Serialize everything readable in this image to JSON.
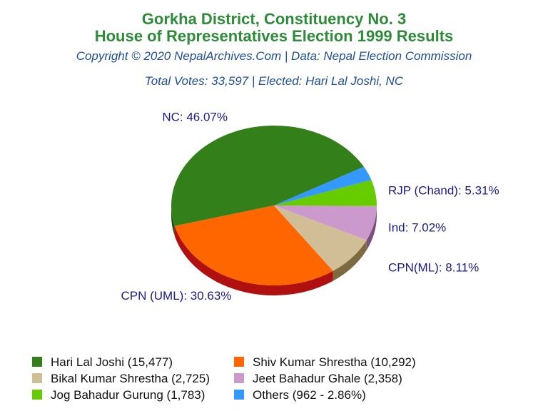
{
  "header": {
    "title_line1": "Gorkha District, Constituency No. 3",
    "title_line2": "House of Representatives Election 1999 Results",
    "copyright": "Copyright © 2020 NepalArchives.Com | Data: Nepal Election Commission",
    "summary": "Total Votes: 33,597 | Elected: Hari Lal Joshi, NC"
  },
  "chart_data": {
    "type": "pie",
    "title": "Gorkha District, Constituency No. 3 House of Representatives Election 1999 Results",
    "total_votes": 33597,
    "slices": [
      {
        "label": "NC: 46.07%",
        "party": "NC",
        "candidate": "Hari Lal Joshi",
        "votes": 15477,
        "percent": 46.07,
        "color": "#33801a",
        "side_color": "#1f5510"
      },
      {
        "label": "CPN (UML): 30.63%",
        "party": "CPN (UML)",
        "candidate": "Shiv Kumar Shrestha",
        "votes": 10292,
        "percent": 30.63,
        "color": "#ff6600",
        "side_color": "#b01010"
      },
      {
        "label": "CPN(ML): 8.11%",
        "party": "CPN(ML)",
        "candidate": "Bikal Kumar Shrestha",
        "votes": 2725,
        "percent": 8.11,
        "color": "#d2be96",
        "side_color": "#7d6a40"
      },
      {
        "label": "Ind: 7.02%",
        "party": "Ind",
        "candidate": "Jeet Bahadur Ghale",
        "votes": 2358,
        "percent": 7.02,
        "color": "#cc99cc",
        "side_color": "#7a4f7a"
      },
      {
        "label": "RJP (Chand): 5.31%",
        "party": "RJP (Chand)",
        "candidate": "Jog Bahadur Gurung",
        "votes": 1783,
        "percent": 5.31,
        "color": "#66cc00",
        "side_color": "#3d7a00"
      },
      {
        "label": "",
        "party": "Others",
        "candidate": "Others",
        "votes": 962,
        "percent": 2.86,
        "color": "#3399ff",
        "side_color": "#1f5c99"
      }
    ]
  },
  "legend": {
    "items": [
      {
        "text": "Hari Lal Joshi (15,477)",
        "color": "#33801a"
      },
      {
        "text": "Shiv Kumar Shrestha (10,292)",
        "color": "#ff6600"
      },
      {
        "text": "Bikal Kumar Shrestha (2,725)",
        "color": "#d2be96"
      },
      {
        "text": "Jeet Bahadur Ghale (2,358)",
        "color": "#cc99cc"
      },
      {
        "text": "Jog Bahadur Gurung (1,783)",
        "color": "#66cc00"
      },
      {
        "text": "Others (962 - 2.86%)",
        "color": "#3399ff"
      }
    ]
  }
}
